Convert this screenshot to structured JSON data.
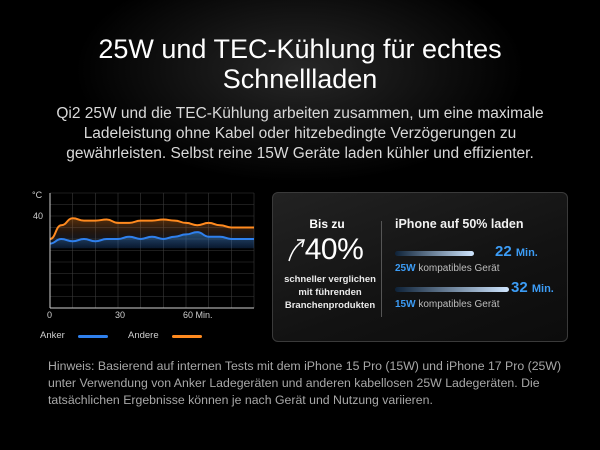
{
  "header": {
    "title": "25W und TEC-Kühlung für echtes Schnellladen",
    "description": "Qi2 25W und die TEC-Kühlung arbeiten zusammen, um eine maximale Ladeleistung ohne Kabel oder hitzebedingte Verzögerungen zu gewährleisten. Selbst reine 15W Geräte laden kühler und effizienter."
  },
  "chart_data": {
    "type": "line",
    "ylabel": "°C",
    "xlabel": "",
    "x_ticks": [
      "0",
      "30",
      "60 Min."
    ],
    "y_ticks": [
      "40"
    ],
    "xlim": [
      0,
      90
    ],
    "ylim": [
      0,
      50
    ],
    "series": [
      {
        "name": "Anker",
        "color": "#2f80ed",
        "x": [
          0,
          5,
          10,
          15,
          20,
          25,
          30,
          35,
          40,
          45,
          50,
          55,
          60,
          65,
          70,
          75,
          80,
          85,
          90
        ],
        "values": [
          28,
          30,
          29,
          30,
          29,
          30,
          30,
          31,
          30,
          31,
          30,
          31,
          32,
          33,
          31,
          31,
          30,
          30,
          30
        ]
      },
      {
        "name": "Andere",
        "color": "#ff8a1f",
        "x": [
          0,
          5,
          10,
          15,
          20,
          25,
          30,
          35,
          40,
          45,
          50,
          55,
          60,
          65,
          70,
          75,
          80,
          85,
          90
        ],
        "values": [
          30,
          36,
          39,
          38,
          38,
          38.5,
          37,
          37,
          38,
          38,
          38.5,
          38,
          37,
          36,
          37,
          36,
          35,
          35,
          35
        ]
      }
    ],
    "legend": "bottom"
  },
  "card": {
    "bis_label": "Bis zu",
    "percent": "40%",
    "faster_text": "schneller verglichen mit führenden Branchenprodukten",
    "right_title": "iPhone auf 50% laden",
    "rows": [
      {
        "time": "22",
        "unit": "Min.",
        "watt": "25W",
        "rest": "kompatibles Gerät",
        "bar_fraction": 0.69
      },
      {
        "time": "32",
        "unit": "Min.",
        "watt": "15W",
        "rest": "kompatibles Gerät",
        "bar_fraction": 1.0
      }
    ],
    "accent": "#3c9cf5"
  },
  "footnote": "Hinweis: Basierend auf internen Tests mit dem iPhone 15 Pro (15W) und iPhone 17 Pro (25W) unter Verwendung von Anker Ladegeräten und anderen kabellosen 25W Ladegeräten. Die tatsächlichen Ergebnisse können je nach Gerät und Nutzung variieren."
}
